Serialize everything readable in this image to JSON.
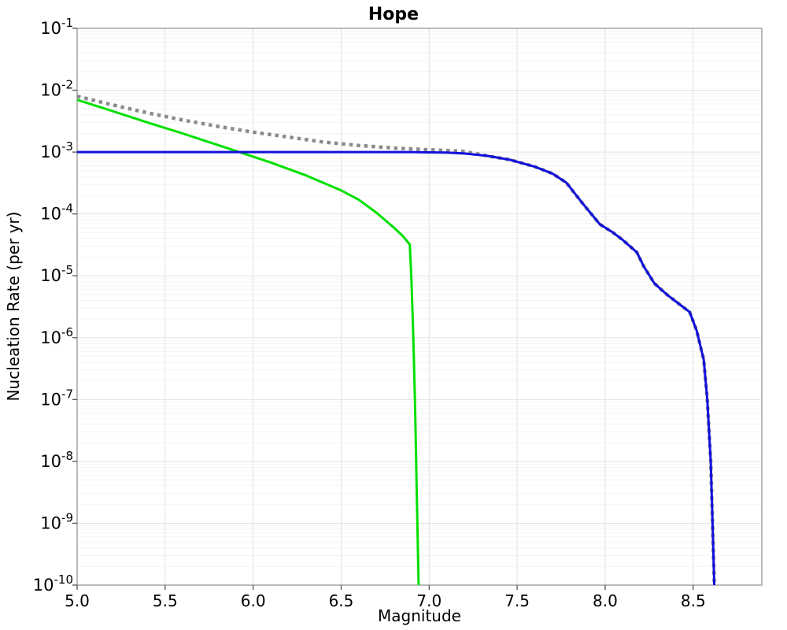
{
  "chart_data": {
    "type": "line",
    "title": "Hope",
    "xlabel": "Magnitude",
    "ylabel": "Nucleation Rate (per yr)",
    "x_range": [
      5.0,
      8.89
    ],
    "y_range_exp": [
      -1,
      -10
    ],
    "x_ticks": [
      "5.0",
      "5.5",
      "6.0",
      "6.5",
      "7.0",
      "7.5",
      "8.0",
      "8.5"
    ],
    "x_tick_values": [
      5.0,
      5.5,
      6.0,
      6.5,
      7.0,
      7.5,
      8.0,
      8.5
    ],
    "y_tick_base": "10",
    "y_tick_exponents": [
      "-1",
      "-2",
      "-3",
      "-4",
      "-5",
      "-6",
      "-7",
      "-8",
      "-9",
      "-10"
    ],
    "grid": true,
    "legend": "none",
    "colors": {
      "total_dotted": "#8a8a8a",
      "sub_seismogenic": "#00e000",
      "supra_seismogenic": "#1111dd",
      "frame": "#a3a3a3",
      "grid_major": "#e2e2e2",
      "grid_minor": "#f4f4f4",
      "tick": "#555555"
    },
    "series": [
      {
        "name": "total-rate-dotted",
        "color": "#8a8a8a",
        "style": "dotted",
        "width": 4.5,
        "points": [
          [
            5.0,
            0.008
          ],
          [
            5.2,
            0.0058
          ],
          [
            5.4,
            0.0043
          ],
          [
            5.6,
            0.0033
          ],
          [
            5.8,
            0.0026
          ],
          [
            6.0,
            0.0021
          ],
          [
            6.2,
            0.00175
          ],
          [
            6.4,
            0.00145
          ],
          [
            6.6,
            0.00128
          ],
          [
            6.8,
            0.00116
          ],
          [
            7.0,
            0.00109
          ],
          [
            7.1,
            0.00106
          ],
          [
            7.2,
            0.00102
          ],
          [
            7.33,
            0.00087
          ],
          [
            7.46,
            0.00075
          ],
          [
            7.6,
            0.00058
          ],
          [
            7.7,
            0.00045
          ],
          [
            7.78,
            0.00032
          ],
          [
            7.87,
            0.00015
          ],
          [
            7.97,
            6.8e-05
          ],
          [
            8.04,
            5.1e-05
          ],
          [
            8.1,
            3.8e-05
          ],
          [
            8.18,
            2.4e-05
          ],
          [
            8.22,
            1.4e-05
          ],
          [
            8.28,
            7.5e-06
          ],
          [
            8.35,
            5e-06
          ],
          [
            8.42,
            3.5e-06
          ],
          [
            8.48,
            2.6e-06
          ],
          [
            8.52,
            1.3e-06
          ],
          [
            8.56,
            4.4e-07
          ],
          [
            8.58,
            1e-07
          ],
          [
            8.6,
            1e-08
          ],
          [
            8.61,
            1e-09
          ],
          [
            8.62,
            1e-10
          ]
        ]
      },
      {
        "name": "sub-seismogenic-rate",
        "color": "#00e000",
        "style": "solid",
        "width": 3,
        "points": [
          [
            5.0,
            0.007
          ],
          [
            5.2,
            0.0046
          ],
          [
            5.4,
            0.003
          ],
          [
            5.6,
            0.002
          ],
          [
            5.8,
            0.0013
          ],
          [
            5.92,
            0.001
          ],
          [
            6.1,
            0.00068
          ],
          [
            6.3,
            0.00042
          ],
          [
            6.5,
            0.00024
          ],
          [
            6.6,
            0.00017
          ],
          [
            6.7,
            0.000105
          ],
          [
            6.8,
            6e-05
          ],
          [
            6.85,
            4.4e-05
          ],
          [
            6.89,
            3.2e-05
          ],
          [
            6.9,
            8e-06
          ],
          [
            6.91,
            1e-06
          ],
          [
            6.92,
            8e-08
          ],
          [
            6.93,
            3e-09
          ],
          [
            6.94,
            1e-10
          ]
        ]
      },
      {
        "name": "supra-seismogenic-rate",
        "color": "#1111dd",
        "style": "solid",
        "width": 3,
        "points": [
          [
            5.0,
            0.001
          ],
          [
            6.5,
            0.001
          ],
          [
            6.9,
            0.001
          ],
          [
            7.0,
            0.00099
          ],
          [
            7.1,
            0.00098
          ],
          [
            7.2,
            0.00095
          ],
          [
            7.33,
            0.00087
          ],
          [
            7.46,
            0.00075
          ],
          [
            7.6,
            0.00058
          ],
          [
            7.7,
            0.00045
          ],
          [
            7.78,
            0.00032
          ],
          [
            7.87,
            0.00015
          ],
          [
            7.97,
            6.8e-05
          ],
          [
            8.04,
            5.1e-05
          ],
          [
            8.1,
            3.8e-05
          ],
          [
            8.18,
            2.4e-05
          ],
          [
            8.22,
            1.4e-05
          ],
          [
            8.28,
            7.5e-06
          ],
          [
            8.35,
            5e-06
          ],
          [
            8.42,
            3.5e-06
          ],
          [
            8.48,
            2.6e-06
          ],
          [
            8.52,
            1.3e-06
          ],
          [
            8.56,
            4.4e-07
          ],
          [
            8.58,
            1e-07
          ],
          [
            8.6,
            1e-08
          ],
          [
            8.61,
            1e-09
          ],
          [
            8.62,
            1e-10
          ]
        ]
      }
    ]
  }
}
